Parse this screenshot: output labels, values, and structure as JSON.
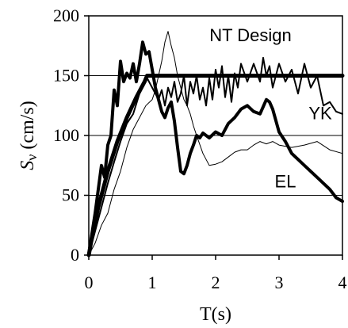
{
  "chart_data": {
    "type": "line",
    "xlabel": "T(s)",
    "ylabel": "Sν (cm/s)",
    "ylabel_main": "S",
    "ylabel_sub": "ν",
    "ylabel_unit": " (cm/s)",
    "xlim": [
      0,
      4
    ],
    "ylim": [
      0,
      200
    ],
    "xticks": [
      0,
      1,
      2,
      3,
      4
    ],
    "yticks": [
      0,
      50,
      100,
      150,
      200
    ],
    "grid": "horizontal",
    "annotations": [
      {
        "text": "NT Design",
        "x": 2.55,
        "y": 184
      },
      {
        "text": "YK",
        "x": 3.65,
        "y": 119
      },
      {
        "text": "EL",
        "x": 3.1,
        "y": 62
      }
    ],
    "series": [
      {
        "name": "Design",
        "style": "thick",
        "x": [
          0,
          0.05,
          0.15,
          0.3,
          0.45,
          0.6,
          0.75,
          0.88,
          0.92,
          4.0
        ],
        "y": [
          0,
          15,
          40,
          70,
          95,
          115,
          132,
          145,
          150,
          150
        ]
      },
      {
        "name": "EL",
        "style": "bold",
        "x": [
          0,
          0.05,
          0.1,
          0.15,
          0.2,
          0.25,
          0.3,
          0.35,
          0.4,
          0.45,
          0.5,
          0.55,
          0.6,
          0.65,
          0.7,
          0.75,
          0.8,
          0.85,
          0.9,
          0.95,
          1.0,
          1.05,
          1.1,
          1.15,
          1.2,
          1.25,
          1.3,
          1.35,
          1.4,
          1.45,
          1.5,
          1.55,
          1.6,
          1.65,
          1.7,
          1.75,
          1.8,
          1.9,
          2.0,
          2.1,
          2.2,
          2.3,
          2.4,
          2.5,
          2.6,
          2.7,
          2.8,
          2.85,
          2.9,
          3.0,
          3.1,
          3.2,
          3.4,
          3.6,
          3.8,
          3.9,
          4.0
        ],
        "y": [
          0,
          18,
          35,
          55,
          75,
          65,
          92,
          100,
          138,
          125,
          162,
          145,
          152,
          148,
          160,
          145,
          160,
          178,
          168,
          170,
          155,
          140,
          130,
          120,
          115,
          123,
          128,
          112,
          90,
          70,
          68,
          75,
          85,
          92,
          100,
          98,
          102,
          98,
          103,
          100,
          110,
          115,
          122,
          125,
          120,
          118,
          130,
          128,
          122,
          103,
          95,
          85,
          75,
          65,
          55,
          48,
          45
        ]
      },
      {
        "name": "YK",
        "style": "medium",
        "x": [
          0,
          0.1,
          0.2,
          0.3,
          0.4,
          0.5,
          0.6,
          0.7,
          0.8,
          0.9,
          0.95,
          1.0,
          1.05,
          1.1,
          1.15,
          1.2,
          1.25,
          1.3,
          1.35,
          1.4,
          1.45,
          1.5,
          1.55,
          1.6,
          1.65,
          1.7,
          1.75,
          1.8,
          1.85,
          1.9,
          1.95,
          2.0,
          2.05,
          2.1,
          2.15,
          2.2,
          2.25,
          2.3,
          2.35,
          2.4,
          2.5,
          2.6,
          2.7,
          2.75,
          2.8,
          2.85,
          2.9,
          3.0,
          3.1,
          3.2,
          3.3,
          3.4,
          3.5,
          3.6,
          3.7,
          3.8,
          3.9,
          4.0
        ],
        "y": [
          0,
          20,
          40,
          60,
          78,
          95,
          110,
          118,
          135,
          150,
          145,
          140,
          135,
          130,
          138,
          125,
          140,
          132,
          145,
          128,
          135,
          150,
          125,
          145,
          135,
          150,
          130,
          140,
          125,
          148,
          130,
          155,
          140,
          158,
          132,
          150,
          128,
          152,
          140,
          160,
          145,
          160,
          145,
          165,
          150,
          158,
          140,
          160,
          145,
          155,
          135,
          160,
          140,
          150,
          125,
          128,
          120,
          118
        ]
      },
      {
        "name": "NT",
        "style": "thin",
        "x": [
          0,
          0.1,
          0.2,
          0.3,
          0.4,
          0.5,
          0.6,
          0.7,
          0.8,
          0.9,
          1.0,
          1.05,
          1.1,
          1.15,
          1.2,
          1.25,
          1.3,
          1.35,
          1.4,
          1.45,
          1.5,
          1.55,
          1.6,
          1.65,
          1.7,
          1.8,
          1.9,
          2.0,
          2.1,
          2.2,
          2.3,
          2.4,
          2.5,
          2.6,
          2.7,
          2.8,
          2.9,
          3.0,
          3.2,
          3.4,
          3.6,
          3.8,
          4.0
        ],
        "y": [
          0,
          10,
          25,
          35,
          55,
          70,
          90,
          105,
          115,
          125,
          130,
          138,
          150,
          162,
          178,
          187,
          175,
          165,
          150,
          140,
          130,
          125,
          118,
          108,
          100,
          85,
          75,
          76,
          78,
          82,
          86,
          88,
          88,
          92,
          95,
          93,
          95,
          92,
          90,
          92,
          95,
          88,
          85
        ]
      }
    ]
  }
}
